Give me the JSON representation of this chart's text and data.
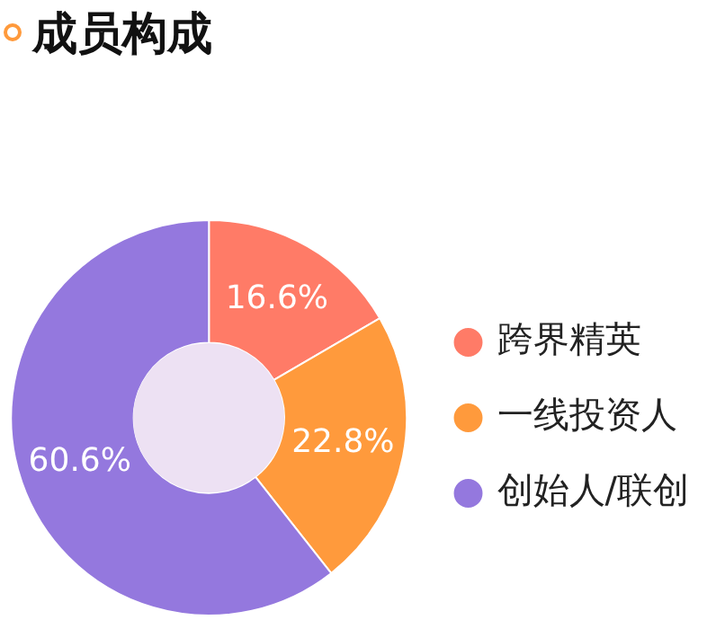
{
  "chart_data": {
    "type": "donut",
    "title": "成员构成",
    "categories": [
      "跨界精英",
      "一线投资人",
      "创始人/联创"
    ],
    "values": [
      16.6,
      22.8,
      60.6
    ],
    "colors": [
      "#ff7b67",
      "#ff9a3c",
      "#9478de"
    ],
    "value_labels": [
      "16.6%",
      "22.8%",
      "60.6%"
    ],
    "legend": "right"
  }
}
